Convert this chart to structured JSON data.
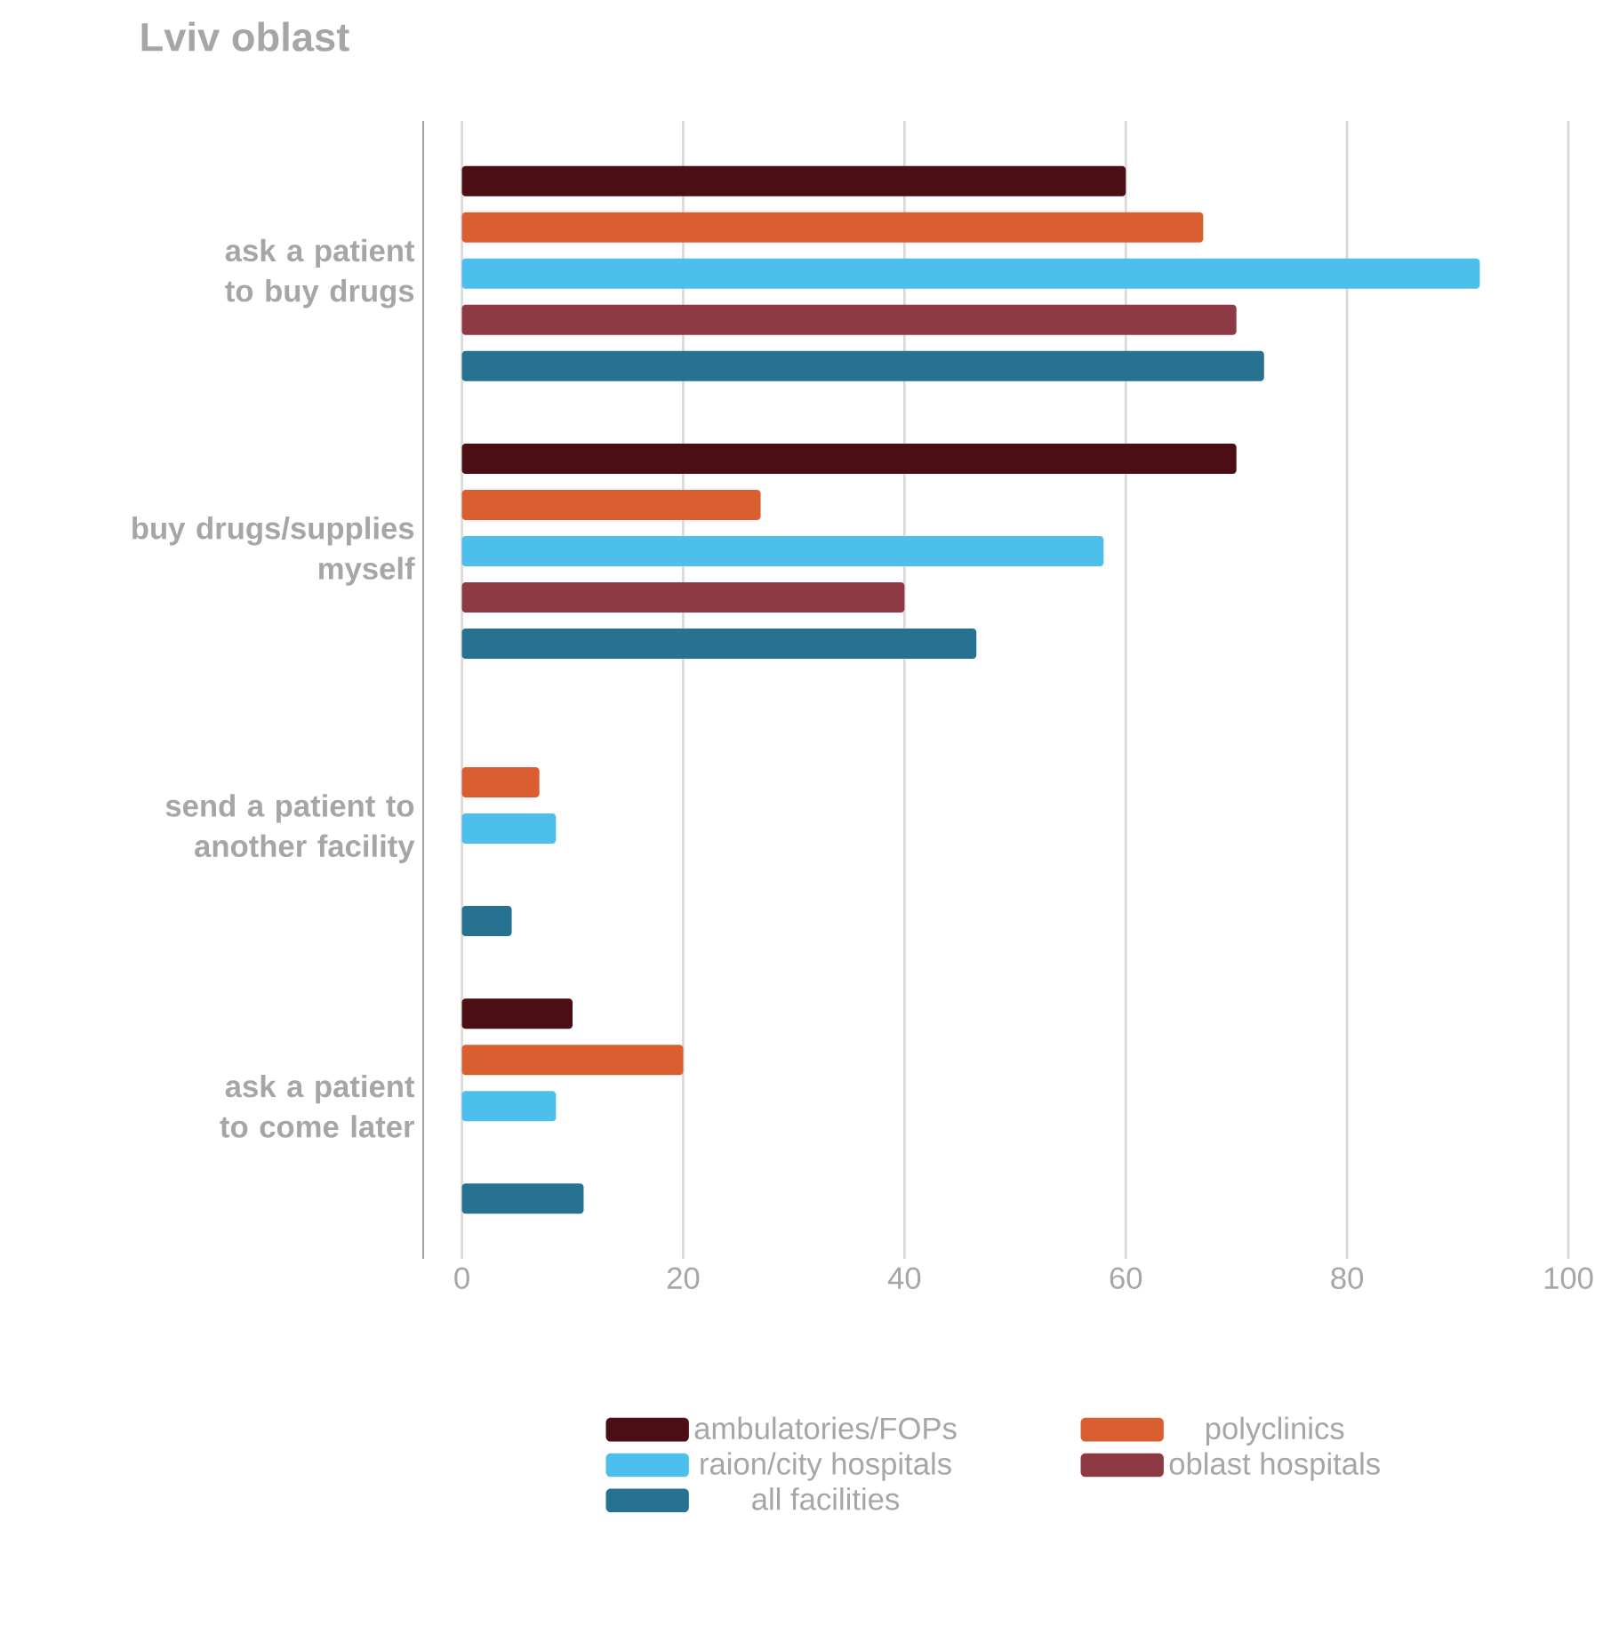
{
  "chart_data": {
    "type": "bar",
    "orientation": "horizontal",
    "title": "Lviv oblast",
    "categories": [
      "ask a patient to buy drugs",
      "buy drugs/supplies myself",
      "send a patient to another facility",
      "ask a patient to come later"
    ],
    "series": [
      {
        "name": "ambulatories/FOPs",
        "color": "#4a0e14",
        "values": [
          60,
          70,
          null,
          10
        ]
      },
      {
        "name": "polyclinics",
        "color": "#d95f30",
        "values": [
          67,
          27,
          7,
          20
        ]
      },
      {
        "name": "raion/city hospitals",
        "color": "#4dbfed",
        "values": [
          92,
          58,
          8.5,
          8.5
        ]
      },
      {
        "name": "oblast hospitals",
        "color": "#8e3a44",
        "values": [
          70,
          40,
          null,
          null
        ]
      },
      {
        "name": "all facilities",
        "color": "#277290",
        "values": [
          72.5,
          46.5,
          4.5,
          11
        ]
      }
    ],
    "xlim": [
      -3.5,
      100
    ],
    "xticks": [
      0,
      20,
      40,
      60,
      80,
      100
    ],
    "grid": "x",
    "legend": "bottom"
  }
}
